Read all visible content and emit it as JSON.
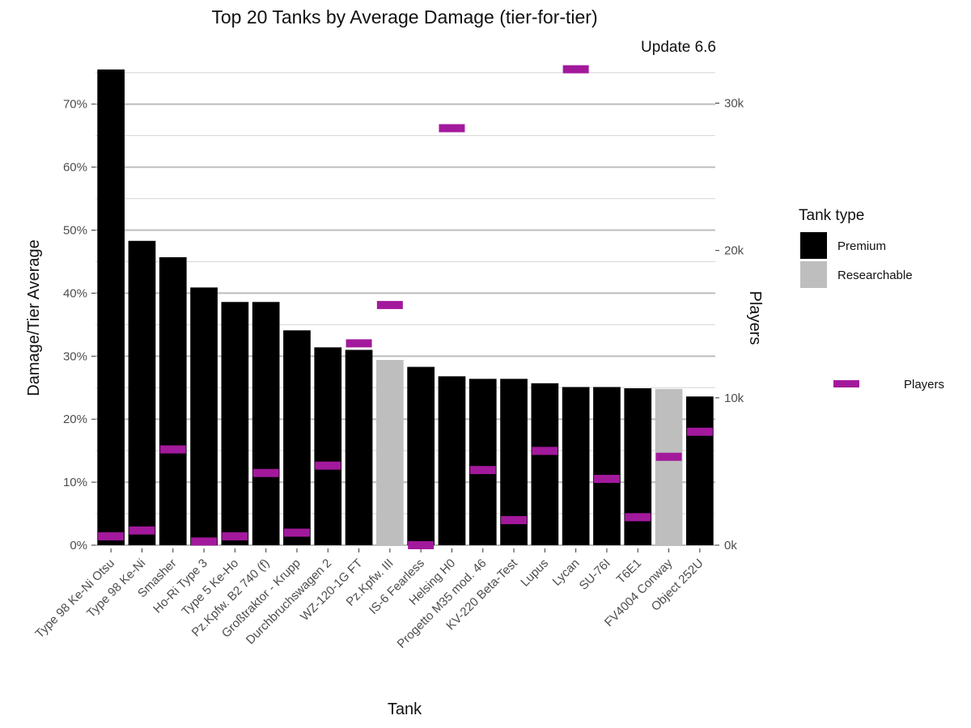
{
  "chart_data": {
    "type": "bar",
    "title": "Top 20 Tanks by Average Damage (tier-for-tier)",
    "subtitle": "Update 6.6",
    "xlabel": "Tank",
    "ylabel": "Damage/Tier Average",
    "y2label": "Players",
    "ylim": [
      0,
      0.76
    ],
    "y2lim": [
      0,
      32500
    ],
    "yticks": [
      {
        "v": 0,
        "label": "0%"
      },
      {
        "v": 0.1,
        "label": "10%"
      },
      {
        "v": 0.2,
        "label": "20%"
      },
      {
        "v": 0.3,
        "label": "30%"
      },
      {
        "v": 0.4,
        "label": "40%"
      },
      {
        "v": 0.5,
        "label": "50%"
      },
      {
        "v": 0.6,
        "label": "60%"
      },
      {
        "v": 0.7,
        "label": "70%"
      }
    ],
    "y2ticks": [
      {
        "v": 0,
        "label": "0k"
      },
      {
        "v": 10000,
        "label": "10k"
      },
      {
        "v": 20000,
        "label": "20k"
      },
      {
        "v": 30000,
        "label": "30k"
      }
    ],
    "grid": true,
    "legend_placement": "right",
    "legend": {
      "title": "Tank type",
      "entries": [
        {
          "label": "Premium",
          "color": "#000000"
        },
        {
          "label": "Researchable",
          "color": "#bebebe"
        }
      ],
      "players_label": "Players",
      "players_color": "#a3199c"
    },
    "categories": [
      "Type 98 Ke-Ni Otsu",
      "Type 98 Ke-Ni",
      "Smasher",
      "Ho-Ri Type 3",
      "Type 5 Ke-Ho",
      "Pz.Kpfw. B2 740 (f)",
      "Großtraktor - Krupp",
      "Durchbruchswagen 2",
      "WZ-120-1G FT",
      "Pz.Kpfw. III",
      "IS-6 Fearless",
      "Helsing H0",
      "Progetto M35 mod. 46",
      "KV-220 Beta-Test",
      "Lupus",
      "Lycan",
      "SU-76I",
      "T6E1",
      "FV4004 Conway",
      "Object 252U"
    ],
    "series": [
      {
        "name": "Damage/Tier Average",
        "axis": "left",
        "values": [
          0.755,
          0.483,
          0.457,
          0.409,
          0.386,
          0.386,
          0.341,
          0.314,
          0.31,
          0.294,
          0.283,
          0.268,
          0.264,
          0.264,
          0.257,
          0.251,
          0.251,
          0.249,
          0.248,
          0.236
        ],
        "type": [
          "Premium",
          "Premium",
          "Premium",
          "Premium",
          "Premium",
          "Premium",
          "Premium",
          "Premium",
          "Premium",
          "Researchable",
          "Premium",
          "Premium",
          "Premium",
          "Premium",
          "Premium",
          "Premium",
          "Premium",
          "Premium",
          "Researchable",
          "Premium"
        ]
      },
      {
        "name": "Players",
        "axis": "right",
        "values": [
          600,
          1000,
          6500,
          250,
          600,
          4900,
          850,
          5400,
          13700,
          16300,
          0,
          28300,
          5100,
          1700,
          6400,
          32300,
          4500,
          1900,
          6000,
          7700
        ]
      }
    ]
  }
}
